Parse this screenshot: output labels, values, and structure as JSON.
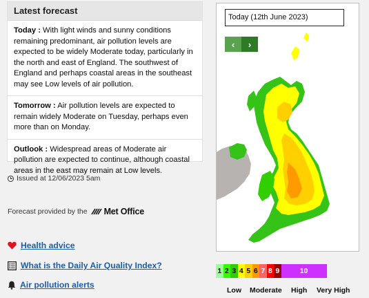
{
  "forecast": {
    "title": "Latest forecast",
    "today_label": "Today :",
    "today_text": " With light winds and sunny conditions remaining predominant, air pollution levels are expected to be widely Moderate today, particularly in the north and east of England. The southwest of England and perhaps coastal areas in the southeast may see Low levels of air pollution.",
    "tomorrow_label": "Tomorrow :",
    "tomorrow_text": " Air pollution levels are expected to remain widely Moderate on Tuesday, perhaps even more than on Monday.",
    "outlook_label": "Outlook :",
    "outlook_text": " Widespread areas of Moderate air pollution are expected to continue, although coastal areas in the east may remain at Low levels."
  },
  "issued": "Issued at 12/06/2023 5am",
  "provider": {
    "text": "Forecast provided by the",
    "logo": "Met Office"
  },
  "links": [
    {
      "label": "Health advice",
      "icon": "heart-icon",
      "color": "#e0141e"
    },
    {
      "label": "What is the Daily Air Quality Index?",
      "icon": "list-icon"
    },
    {
      "label": "Air pollution alerts",
      "icon": "bell-icon"
    }
  ],
  "map": {
    "date": "Today (12th June 2023)",
    "prev_icon": "chevron-left-icon",
    "next_icon": "chevron-right-icon"
  },
  "scale": {
    "levels": [
      {
        "value": "1",
        "color": "#9cff9c",
        "text": "#0b0c0c"
      },
      {
        "value": "2",
        "color": "#31ff00",
        "text": "#0b0c0c"
      },
      {
        "value": "3",
        "color": "#31cf00",
        "text": "#0b0c0c"
      },
      {
        "value": "4",
        "color": "#ffff00",
        "text": "#0b0c0c"
      },
      {
        "value": "5",
        "color": "#ffcf00",
        "text": "#0b0c0c"
      },
      {
        "value": "6",
        "color": "#ff9a00",
        "text": "#0b0c0c"
      },
      {
        "value": "7",
        "color": "#ff6464",
        "text": "#ffffff"
      },
      {
        "value": "8",
        "color": "#ff0000",
        "text": "#ffffff"
      },
      {
        "value": "9",
        "color": "#990000",
        "text": "#ffffff"
      },
      {
        "value": "10",
        "color": "#ce30ff",
        "text": "#ffffff"
      }
    ],
    "bands": [
      "Low",
      "Moderate",
      "High",
      "Very High"
    ]
  }
}
